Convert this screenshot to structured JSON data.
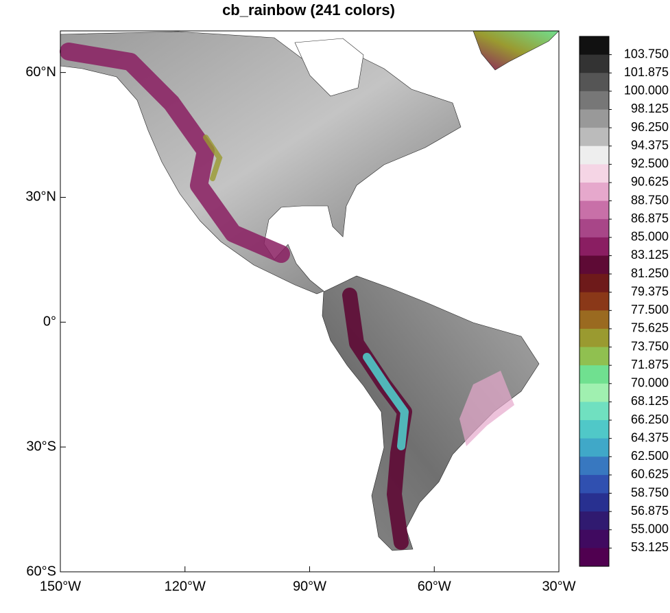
{
  "title": "cb_rainbow (241 colors)",
  "map": {
    "xlim": [
      -150,
      -30
    ],
    "ylim": [
      -60,
      70
    ],
    "xticks": [
      {
        "value": -150,
        "label": "150°W"
      },
      {
        "value": -120,
        "label": "120°W"
      },
      {
        "value": -90,
        "label": "90°W"
      },
      {
        "value": -60,
        "label": "60°W"
      },
      {
        "value": -30,
        "label": "30°W"
      }
    ],
    "yticks": [
      {
        "value": 60,
        "label": "60°N"
      },
      {
        "value": 30,
        "label": "30°N"
      },
      {
        "value": 0,
        "label": "0°"
      },
      {
        "value": -30,
        "label": "30°S"
      },
      {
        "value": -60,
        "label": "60°S"
      }
    ]
  },
  "colorbar": {
    "lim": [
      51.25,
      105.625
    ],
    "ticks": [
      {
        "value": 103.75,
        "label": "103.750"
      },
      {
        "value": 101.875,
        "label": "101.875"
      },
      {
        "value": 100,
        "label": "100.000"
      },
      {
        "value": 98.125,
        "label": "98.125"
      },
      {
        "value": 96.25,
        "label": "96.250"
      },
      {
        "value": 94.375,
        "label": "94.375"
      },
      {
        "value": 92.5,
        "label": "92.500"
      },
      {
        "value": 90.625,
        "label": "90.625"
      },
      {
        "value": 88.75,
        "label": "88.750"
      },
      {
        "value": 86.875,
        "label": "86.875"
      },
      {
        "value": 85,
        "label": "85.000"
      },
      {
        "value": 83.125,
        "label": "83.125"
      },
      {
        "value": 81.25,
        "label": "81.250"
      },
      {
        "value": 79.375,
        "label": "79.375"
      },
      {
        "value": 77.5,
        "label": "77.500"
      },
      {
        "value": 75.625,
        "label": "75.625"
      },
      {
        "value": 73.75,
        "label": "73.750"
      },
      {
        "value": 71.875,
        "label": "71.875"
      },
      {
        "value": 70,
        "label": "70.000"
      },
      {
        "value": 68.125,
        "label": "68.125"
      },
      {
        "value": 66.25,
        "label": "66.250"
      },
      {
        "value": 64.375,
        "label": "64.375"
      },
      {
        "value": 62.5,
        "label": "62.500"
      },
      {
        "value": 60.625,
        "label": "60.625"
      },
      {
        "value": 58.75,
        "label": "58.750"
      },
      {
        "value": 56.875,
        "label": "56.875"
      },
      {
        "value": 55,
        "label": "55.000"
      },
      {
        "value": 53.125,
        "label": "53.125"
      }
    ],
    "colors": [
      "#111111",
      "#333333",
      "#555555",
      "#777777",
      "#999999",
      "#bbbbbb",
      "#eeeeee",
      "#f5d5e5",
      "#e6a8cc",
      "#c870a8",
      "#a84688",
      "#8a1e62",
      "#5e0a35",
      "#6e1a1a",
      "#8a3818",
      "#9a6a20",
      "#9a9a30",
      "#90c050",
      "#70e090",
      "#a0f0b0",
      "#70e0c0",
      "#50c8c8",
      "#40a8c8",
      "#3878c0",
      "#3050b0",
      "#283090",
      "#301a70",
      "#400a60",
      "#500050"
    ]
  }
}
